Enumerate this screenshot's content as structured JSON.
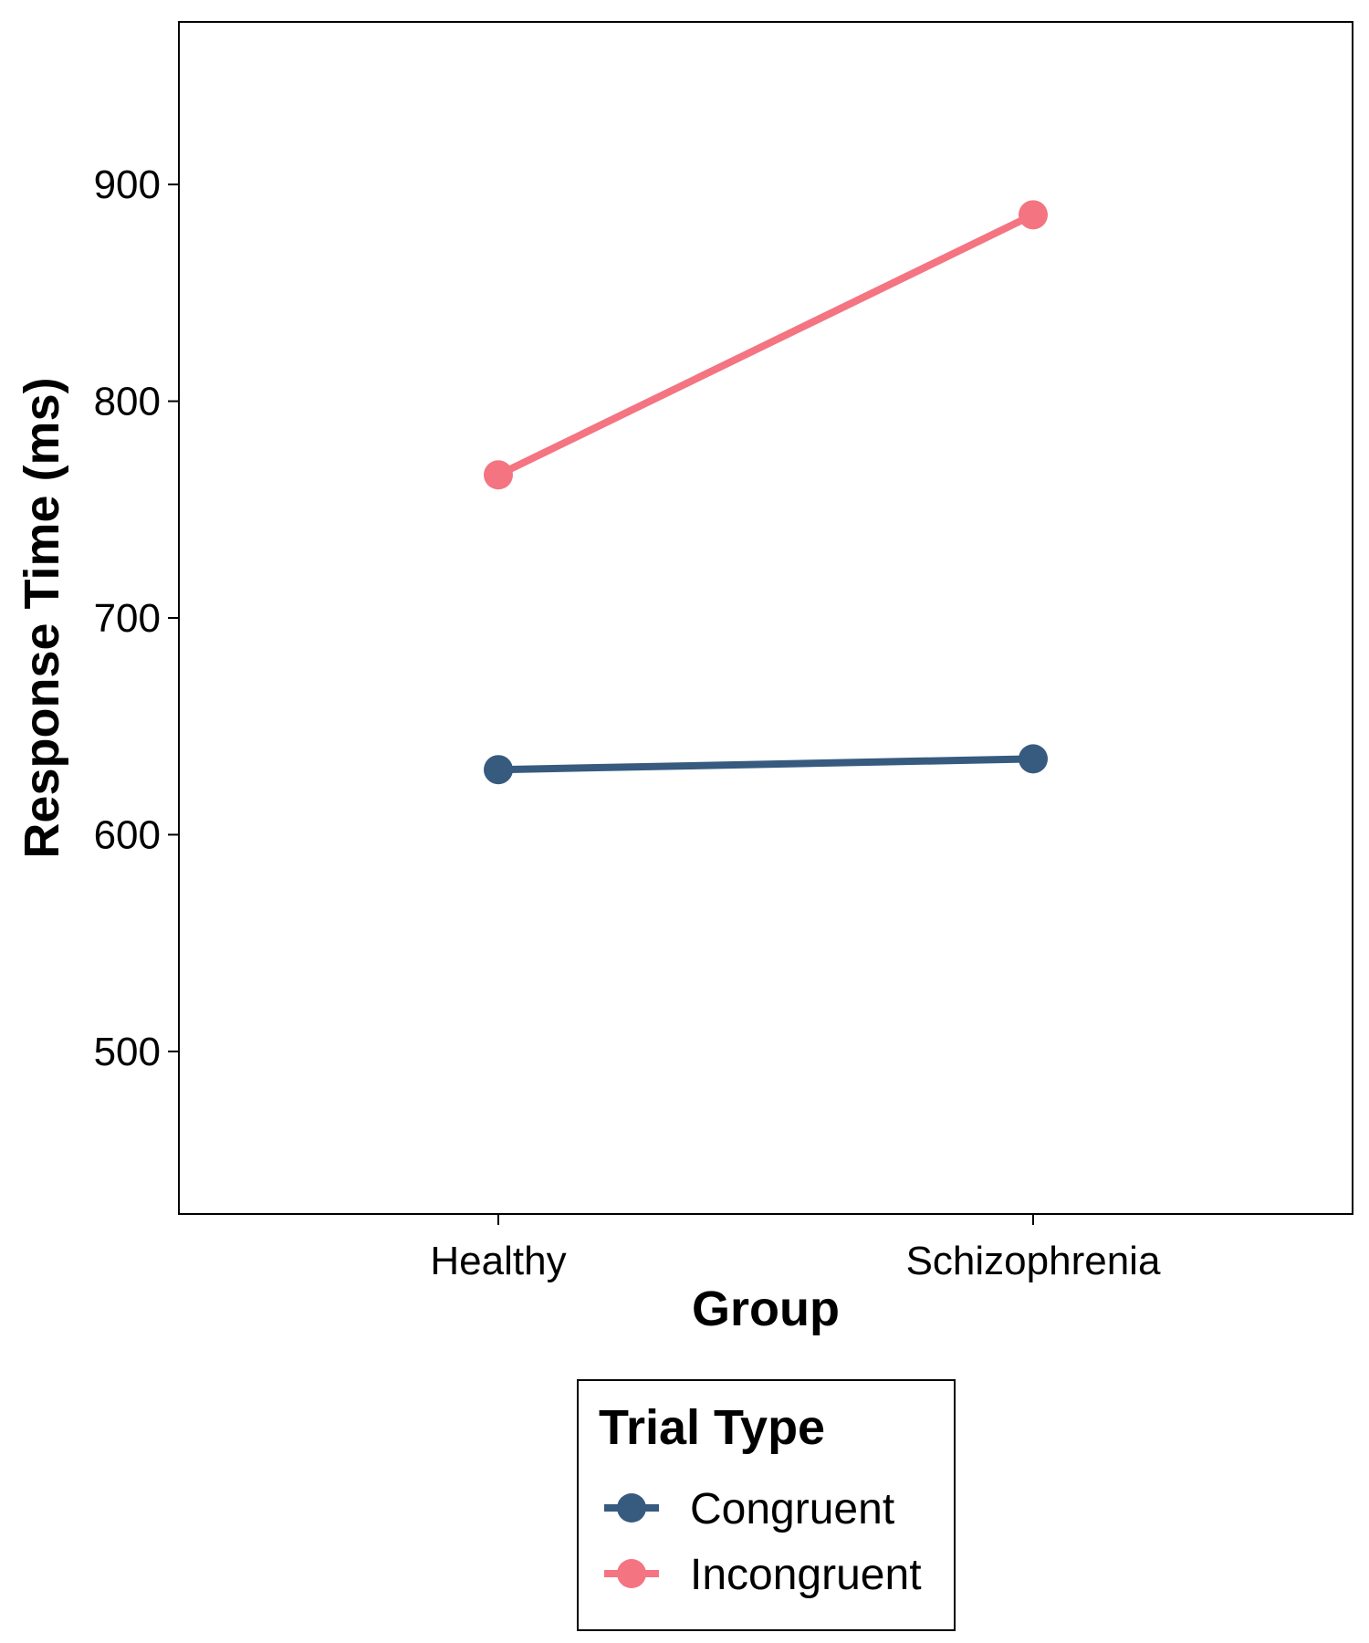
{
  "chart_data": {
    "type": "line",
    "xlabel": "Group",
    "ylabel": "Response Time (ms)",
    "categories": [
      "Healthy",
      "Schizophrenia"
    ],
    "ylim": [
      425,
      975
    ],
    "yticks": [
      500,
      600,
      700,
      800,
      900
    ],
    "grid": false,
    "legend_position": "bottom",
    "legend_title": "Trial Type",
    "series": [
      {
        "name": "Congruent",
        "values": [
          630,
          635
        ],
        "color": "#375A7F"
      },
      {
        "name": "Incongruent",
        "values": [
          766,
          886
        ],
        "color": "#F47482"
      }
    ]
  }
}
